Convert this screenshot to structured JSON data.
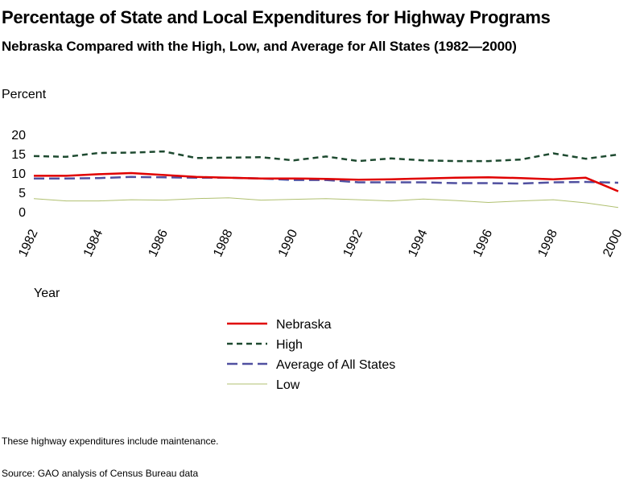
{
  "title": "Percentage of State and Local Expenditures for Highway Programs",
  "subtitle": "Nebraska Compared with the High, Low, and Average for All States (1982—2000)",
  "ylabel": "Percent",
  "xlabel": "Year",
  "note": "These highway expenditures include maintenance.",
  "source": "Source: GAO analysis of Census Bureau data",
  "chart_data": {
    "type": "line",
    "title": "Percentage of State and Local Expenditures for Highway Programs",
    "subtitle": "Nebraska Compared with the High, Low, and Average for All States (1982—2000)",
    "xlabel": "Year",
    "ylabel": "Percent",
    "ylim": [
      0,
      20
    ],
    "yticks": [
      0,
      5,
      10,
      15,
      20
    ],
    "xticks": [
      1982,
      1984,
      1986,
      1988,
      1990,
      1992,
      1994,
      1996,
      1998,
      2000
    ],
    "grid": false,
    "legend_position": "bottom",
    "x": [
      1982,
      1983,
      1984,
      1985,
      1986,
      1987,
      1988,
      1989,
      1990,
      1991,
      1992,
      1993,
      1994,
      1995,
      1996,
      1997,
      1998,
      1999,
      2000
    ],
    "series": [
      {
        "name": "Nebraska",
        "color": "#e00000",
        "style": "solid",
        "values": [
          9.3,
          9.3,
          9.7,
          10.0,
          9.5,
          9.0,
          8.8,
          8.6,
          8.6,
          8.5,
          8.3,
          8.4,
          8.6,
          8.8,
          8.9,
          8.7,
          8.4,
          8.8,
          5.3
        ]
      },
      {
        "name": "High",
        "color": "#1e4a30",
        "style": "dotted",
        "values": [
          14.4,
          14.2,
          15.2,
          15.3,
          15.6,
          13.9,
          14.0,
          14.1,
          13.3,
          14.3,
          13.1,
          13.8,
          13.3,
          13.1,
          13.1,
          13.5,
          15.1,
          13.7,
          14.8
        ]
      },
      {
        "name": "Average of All States",
        "color": "#5050a0",
        "style": "dashed",
        "values": [
          8.6,
          8.6,
          8.7,
          9.0,
          8.9,
          8.8,
          8.8,
          8.6,
          8.2,
          8.2,
          7.6,
          7.6,
          7.6,
          7.4,
          7.4,
          7.3,
          7.6,
          7.7,
          7.5
        ]
      },
      {
        "name": "Low",
        "color": "#b0c070",
        "style": "solid",
        "values": [
          3.4,
          2.8,
          2.8,
          3.1,
          3.0,
          3.4,
          3.6,
          3.0,
          3.2,
          3.4,
          3.1,
          2.8,
          3.3,
          2.9,
          2.4,
          2.8,
          3.1,
          2.3,
          1.1
        ]
      }
    ]
  }
}
